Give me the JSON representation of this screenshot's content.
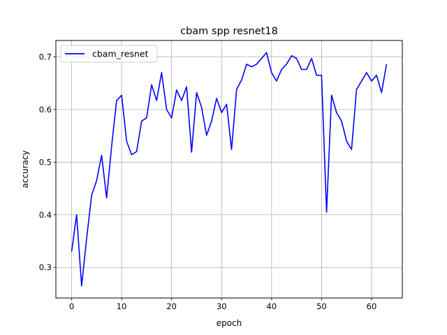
{
  "chart_data": {
    "type": "line",
    "title": "cbam spp resnet18",
    "xlabel": "epoch",
    "ylabel": "accuracy",
    "xlim": [
      -3.15,
      66.15
    ],
    "ylim": [
      0.242,
      0.731
    ],
    "xticks": [
      0,
      10,
      20,
      30,
      40,
      50,
      60
    ],
    "yticks": [
      0.3,
      0.4,
      0.5,
      0.6,
      0.7
    ],
    "grid": true,
    "legend_position": "top-left",
    "series": [
      {
        "name": "cbam_resnet",
        "color": "#0000ff",
        "x": [
          0,
          1,
          2,
          3,
          4,
          5,
          6,
          7,
          8,
          9,
          10,
          11,
          12,
          13,
          14,
          15,
          16,
          17,
          18,
          19,
          20,
          21,
          22,
          23,
          24,
          25,
          26,
          27,
          28,
          29,
          30,
          31,
          32,
          33,
          34,
          35,
          36,
          37,
          38,
          39,
          40,
          41,
          42,
          43,
          44,
          45,
          46,
          47,
          48,
          49,
          50,
          51,
          52,
          53,
          54,
          55,
          56,
          57,
          58,
          59,
          60,
          61,
          62,
          63
        ],
        "y": [
          0.33,
          0.4,
          0.265,
          0.355,
          0.437,
          0.465,
          0.513,
          0.432,
          0.53,
          0.617,
          0.627,
          0.54,
          0.514,
          0.52,
          0.578,
          0.584,
          0.647,
          0.617,
          0.67,
          0.6,
          0.584,
          0.637,
          0.617,
          0.643,
          0.519,
          0.632,
          0.604,
          0.551,
          0.578,
          0.621,
          0.594,
          0.61,
          0.524,
          0.638,
          0.656,
          0.686,
          0.681,
          0.686,
          0.697,
          0.708,
          0.67,
          0.654,
          0.676,
          0.686,
          0.702,
          0.697,
          0.676,
          0.676,
          0.697,
          0.665,
          0.665,
          0.405,
          0.627,
          0.594,
          0.578,
          0.54,
          0.524,
          0.638,
          0.654,
          0.67,
          0.654,
          0.665,
          0.632,
          0.686
        ]
      }
    ]
  }
}
